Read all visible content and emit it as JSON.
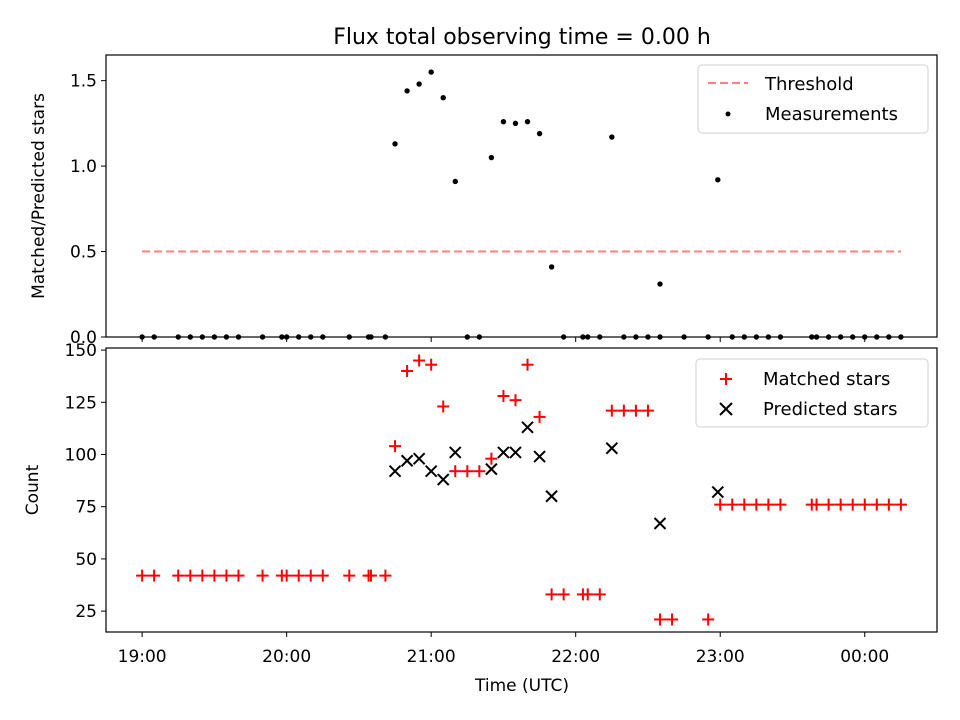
{
  "chart_data": [
    {
      "type": "scatter",
      "title": "Flux total observing time = 0.00 h",
      "xlabel": "",
      "ylabel": "Matched/Predicted stars",
      "x_range": [
        "18:45",
        "00:30"
      ],
      "ylim": [
        0,
        1.65
      ],
      "yticks": [
        0.0,
        0.5,
        1.0,
        1.5
      ],
      "yticklabels": [
        "0.0",
        "0.5",
        "1.0",
        "1.5"
      ],
      "grid": false,
      "legend": "top-right",
      "threshold": {
        "name": "Threshold",
        "value": 0.5,
        "x_start": "19:00",
        "x_end": "00:15",
        "color": "#ff7f7f",
        "style": "dashed"
      },
      "series": [
        {
          "name": "Measurements",
          "color": "#000000",
          "marker": "dot",
          "points": [
            {
              "x": "19:00",
              "y": 0
            },
            {
              "x": "19:05",
              "y": 0
            },
            {
              "x": "19:15",
              "y": 0
            },
            {
              "x": "19:20",
              "y": 0
            },
            {
              "x": "19:25",
              "y": 0
            },
            {
              "x": "19:30",
              "y": 0
            },
            {
              "x": "19:35",
              "y": 0
            },
            {
              "x": "19:40",
              "y": 0
            },
            {
              "x": "19:50",
              "y": 0
            },
            {
              "x": "19:58",
              "y": 0
            },
            {
              "x": "20:00",
              "y": 0
            },
            {
              "x": "20:05",
              "y": 0
            },
            {
              "x": "20:10",
              "y": 0
            },
            {
              "x": "20:15",
              "y": 0
            },
            {
              "x": "20:26",
              "y": 0
            },
            {
              "x": "20:34",
              "y": 0
            },
            {
              "x": "20:35",
              "y": 0
            },
            {
              "x": "20:41",
              "y": 0
            },
            {
              "x": "20:45",
              "y": 1.13
            },
            {
              "x": "20:50",
              "y": 1.44
            },
            {
              "x": "20:55",
              "y": 1.48
            },
            {
              "x": "21:00",
              "y": 1.55
            },
            {
              "x": "21:05",
              "y": 1.4
            },
            {
              "x": "21:10",
              "y": 0.91
            },
            {
              "x": "21:15",
              "y": 0
            },
            {
              "x": "21:20",
              "y": 0
            },
            {
              "x": "21:25",
              "y": 1.05
            },
            {
              "x": "21:30",
              "y": 1.26
            },
            {
              "x": "21:35",
              "y": 1.25
            },
            {
              "x": "21:40",
              "y": 1.26
            },
            {
              "x": "21:45",
              "y": 1.19
            },
            {
              "x": "21:50",
              "y": 0.41
            },
            {
              "x": "21:55",
              "y": 0
            },
            {
              "x": "22:03",
              "y": 0
            },
            {
              "x": "22:05",
              "y": 0
            },
            {
              "x": "22:10",
              "y": 0
            },
            {
              "x": "22:15",
              "y": 1.17
            },
            {
              "x": "22:20",
              "y": 0
            },
            {
              "x": "22:25",
              "y": 0
            },
            {
              "x": "22:30",
              "y": 0
            },
            {
              "x": "22:35",
              "y": 0
            },
            {
              "x": "22:35",
              "y": 0.31
            },
            {
              "x": "22:45",
              "y": 0
            },
            {
              "x": "22:55",
              "y": 0
            },
            {
              "x": "22:59",
              "y": 0.92
            },
            {
              "x": "23:05",
              "y": 0
            },
            {
              "x": "23:10",
              "y": 0
            },
            {
              "x": "23:15",
              "y": 0
            },
            {
              "x": "23:20",
              "y": 0
            },
            {
              "x": "23:25",
              "y": 0
            },
            {
              "x": "23:38",
              "y": 0
            },
            {
              "x": "23:40",
              "y": 0
            },
            {
              "x": "23:45",
              "y": 0
            },
            {
              "x": "23:50",
              "y": 0
            },
            {
              "x": "23:55",
              "y": 0
            },
            {
              "x": "00:00",
              "y": 0
            },
            {
              "x": "00:05",
              "y": 0
            },
            {
              "x": "00:10",
              "y": 0
            },
            {
              "x": "00:15",
              "y": 0
            }
          ]
        }
      ]
    },
    {
      "type": "scatter",
      "title": "",
      "xlabel": "Time (UTC)",
      "ylabel": "Count",
      "x_range": [
        "18:45",
        "00:30"
      ],
      "ylim": [
        15,
        151
      ],
      "xticks": [
        "19:00",
        "20:00",
        "21:00",
        "22:00",
        "23:00",
        "00:00"
      ],
      "yticks": [
        25,
        50,
        75,
        100,
        125,
        150
      ],
      "grid": false,
      "legend": "top-right",
      "series": [
        {
          "name": "Matched stars",
          "color": "#ff0000",
          "marker": "plus",
          "points": [
            {
              "x": "19:00",
              "y": 42
            },
            {
              "x": "19:05",
              "y": 42
            },
            {
              "x": "19:15",
              "y": 42
            },
            {
              "x": "19:20",
              "y": 42
            },
            {
              "x": "19:25",
              "y": 42
            },
            {
              "x": "19:30",
              "y": 42
            },
            {
              "x": "19:35",
              "y": 42
            },
            {
              "x": "19:40",
              "y": 42
            },
            {
              "x": "19:50",
              "y": 42
            },
            {
              "x": "19:58",
              "y": 42
            },
            {
              "x": "20:00",
              "y": 42
            },
            {
              "x": "20:05",
              "y": 42
            },
            {
              "x": "20:10",
              "y": 42
            },
            {
              "x": "20:15",
              "y": 42
            },
            {
              "x": "20:26",
              "y": 42
            },
            {
              "x": "20:34",
              "y": 42
            },
            {
              "x": "20:35",
              "y": 42
            },
            {
              "x": "20:41",
              "y": 42
            },
            {
              "x": "20:45",
              "y": 104
            },
            {
              "x": "20:50",
              "y": 140
            },
            {
              "x": "20:55",
              "y": 145
            },
            {
              "x": "21:00",
              "y": 143
            },
            {
              "x": "21:05",
              "y": 123
            },
            {
              "x": "21:10",
              "y": 92
            },
            {
              "x": "21:15",
              "y": 92
            },
            {
              "x": "21:20",
              "y": 92
            },
            {
              "x": "21:25",
              "y": 98
            },
            {
              "x": "21:30",
              "y": 128
            },
            {
              "x": "21:35",
              "y": 126
            },
            {
              "x": "21:40",
              "y": 143
            },
            {
              "x": "21:45",
              "y": 118
            },
            {
              "x": "21:50",
              "y": 33
            },
            {
              "x": "21:55",
              "y": 33
            },
            {
              "x": "22:03",
              "y": 33
            },
            {
              "x": "22:05",
              "y": 33
            },
            {
              "x": "22:10",
              "y": 33
            },
            {
              "x": "22:15",
              "y": 121
            },
            {
              "x": "22:20",
              "y": 121
            },
            {
              "x": "22:25",
              "y": 121
            },
            {
              "x": "22:30",
              "y": 121
            },
            {
              "x": "22:35",
              "y": 21
            },
            {
              "x": "22:40",
              "y": 21
            },
            {
              "x": "22:55",
              "y": 21
            },
            {
              "x": "23:00",
              "y": 76
            },
            {
              "x": "23:05",
              "y": 76
            },
            {
              "x": "23:10",
              "y": 76
            },
            {
              "x": "23:15",
              "y": 76
            },
            {
              "x": "23:20",
              "y": 76
            },
            {
              "x": "23:25",
              "y": 76
            },
            {
              "x": "23:38",
              "y": 76
            },
            {
              "x": "23:40",
              "y": 76
            },
            {
              "x": "23:45",
              "y": 76
            },
            {
              "x": "23:50",
              "y": 76
            },
            {
              "x": "23:55",
              "y": 76
            },
            {
              "x": "00:00",
              "y": 76
            },
            {
              "x": "00:05",
              "y": 76
            },
            {
              "x": "00:10",
              "y": 76
            },
            {
              "x": "00:15",
              "y": 76
            }
          ]
        },
        {
          "name": "Predicted stars",
          "color": "#000000",
          "marker": "x",
          "points": [
            {
              "x": "20:45",
              "y": 92
            },
            {
              "x": "20:50",
              "y": 97
            },
            {
              "x": "20:55",
              "y": 98
            },
            {
              "x": "21:00",
              "y": 92
            },
            {
              "x": "21:05",
              "y": 88
            },
            {
              "x": "21:10",
              "y": 101
            },
            {
              "x": "21:25",
              "y": 93
            },
            {
              "x": "21:30",
              "y": 101
            },
            {
              "x": "21:35",
              "y": 101
            },
            {
              "x": "21:40",
              "y": 113
            },
            {
              "x": "21:45",
              "y": 99
            },
            {
              "x": "21:50",
              "y": 80
            },
            {
              "x": "22:15",
              "y": 103
            },
            {
              "x": "22:35",
              "y": 67
            },
            {
              "x": "22:59",
              "y": 82
            }
          ]
        }
      ]
    }
  ]
}
